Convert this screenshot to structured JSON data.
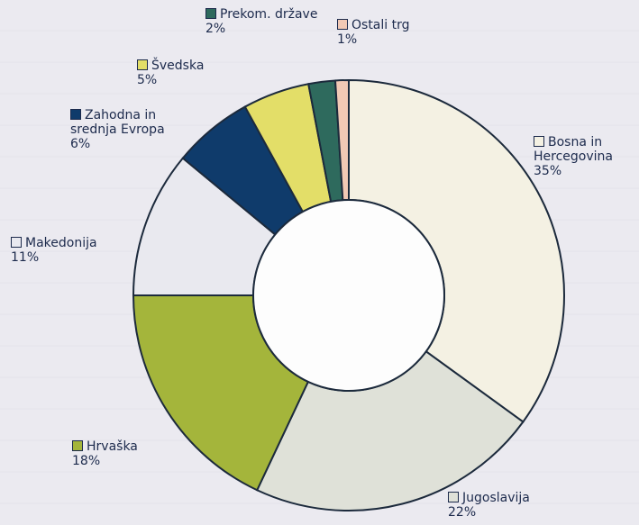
{
  "chart_data": {
    "type": "donut",
    "categories": [
      "Bosna in Hercegovina",
      "Jugoslavija",
      "Hrvaška",
      "Makedonija",
      "Zahodna in srednja Evropa",
      "Švedska",
      "Prekom. države",
      "Ostali trg"
    ],
    "values": [
      35,
      22,
      18,
      11,
      6,
      5,
      2,
      1
    ],
    "value_labels": [
      "35%",
      "22%",
      "18%",
      "11%",
      "6%",
      "5%",
      "2%",
      "1%"
    ],
    "colors": [
      "#f4f1e3",
      "#dfe1d8",
      "#a4b53b",
      "#e9e9ef",
      "#0f3b6b",
      "#e3de68",
      "#2e6a5d",
      "#f1c9b5"
    ]
  }
}
